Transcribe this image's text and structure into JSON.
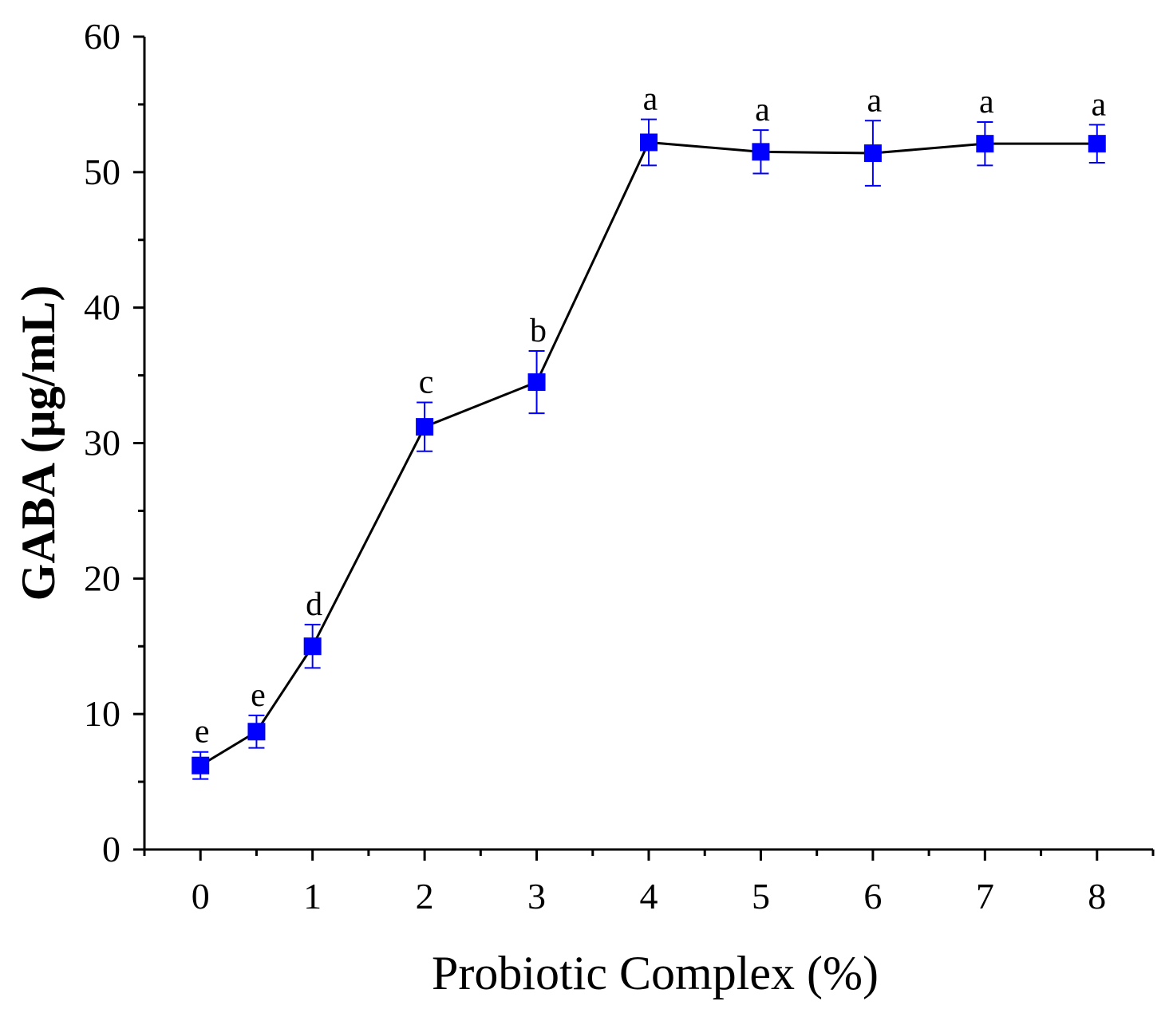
{
  "chart_data": {
    "type": "line",
    "title": "",
    "xlabel": "Probiotic Complex (%)",
    "ylabel": "GABA (μg/mL)",
    "xlim": [
      -0.5,
      8.5
    ],
    "ylim": [
      0,
      60
    ],
    "xticks": [
      0,
      1,
      2,
      3,
      4,
      5,
      6,
      7,
      8
    ],
    "yticks": [
      0,
      10,
      20,
      30,
      40,
      50,
      60
    ],
    "grid": false,
    "legend": "none",
    "colors": {
      "marker": "#0000ff",
      "line": "#000000",
      "error_bar": "#0000ff"
    },
    "series": [
      {
        "name": "GABA",
        "x": [
          0,
          0.5,
          1,
          2,
          3,
          4,
          5,
          6,
          7,
          8
        ],
        "y": [
          6.2,
          8.7,
          15.0,
          31.2,
          34.5,
          52.2,
          51.5,
          51.4,
          52.1,
          52.1
        ],
        "error": [
          1.0,
          1.2,
          1.6,
          1.8,
          2.3,
          1.7,
          1.6,
          2.4,
          1.6,
          1.4
        ],
        "labels": [
          "e",
          "e",
          "d",
          "c",
          "b",
          "a",
          "a",
          "a",
          "a",
          "a"
        ]
      }
    ]
  }
}
